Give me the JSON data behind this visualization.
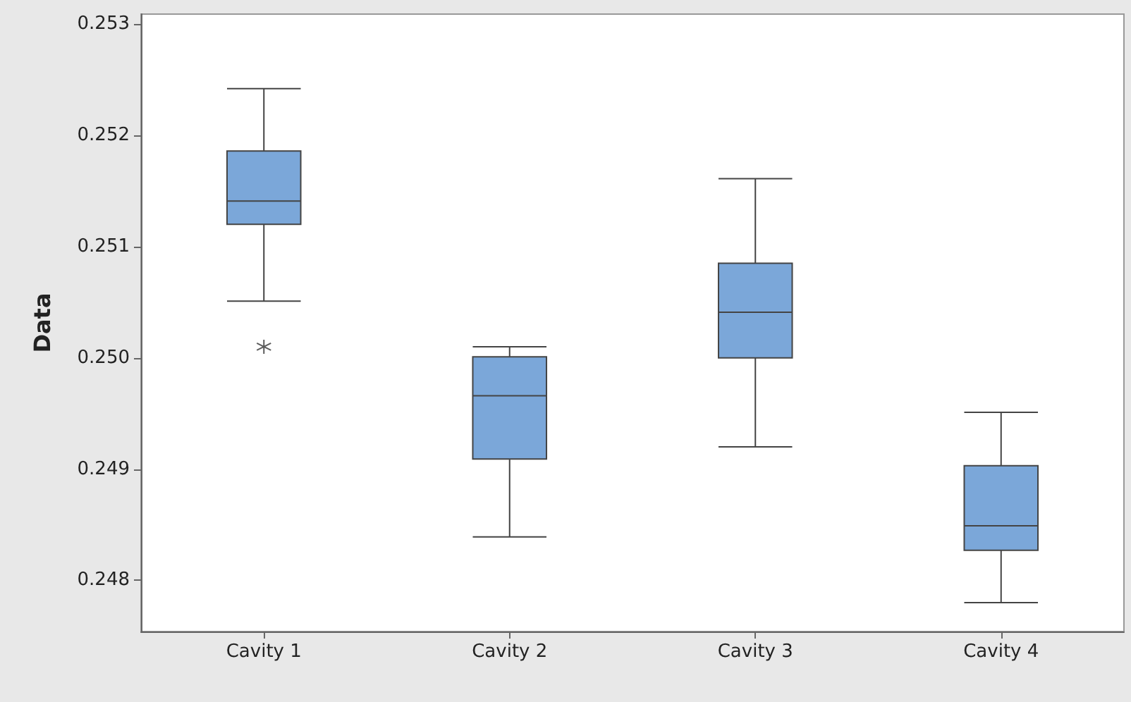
{
  "chart_data": {
    "type": "box",
    "ylabel": "Data",
    "categories": [
      "Cavity 1",
      "Cavity 2",
      "Cavity 3",
      "Cavity 4"
    ],
    "boxes": [
      {
        "low": 0.25051,
        "q1": 0.2512,
        "median": 0.25141,
        "q3": 0.25186,
        "high": 0.25242,
        "outliers": [
          0.2501
        ]
      },
      {
        "low": 0.24839,
        "q1": 0.24909,
        "median": 0.24966,
        "q3": 0.25001,
        "high": 0.2501
      },
      {
        "low": 0.2492,
        "q1": 0.25,
        "median": 0.25041,
        "q3": 0.25085,
        "high": 0.25161
      },
      {
        "low": 0.2478,
        "q1": 0.24827,
        "median": 0.24849,
        "q3": 0.24903,
        "high": 0.24951
      }
    ],
    "color": "#7ba7d9",
    "ylim": [
      0.24754,
      0.25309
    ],
    "yticks": [
      0.248,
      0.249,
      {
        "value": 0.25,
        "label": "0.250"
      },
      0.251,
      0.252,
      0.253
    ],
    "grid": false
  }
}
